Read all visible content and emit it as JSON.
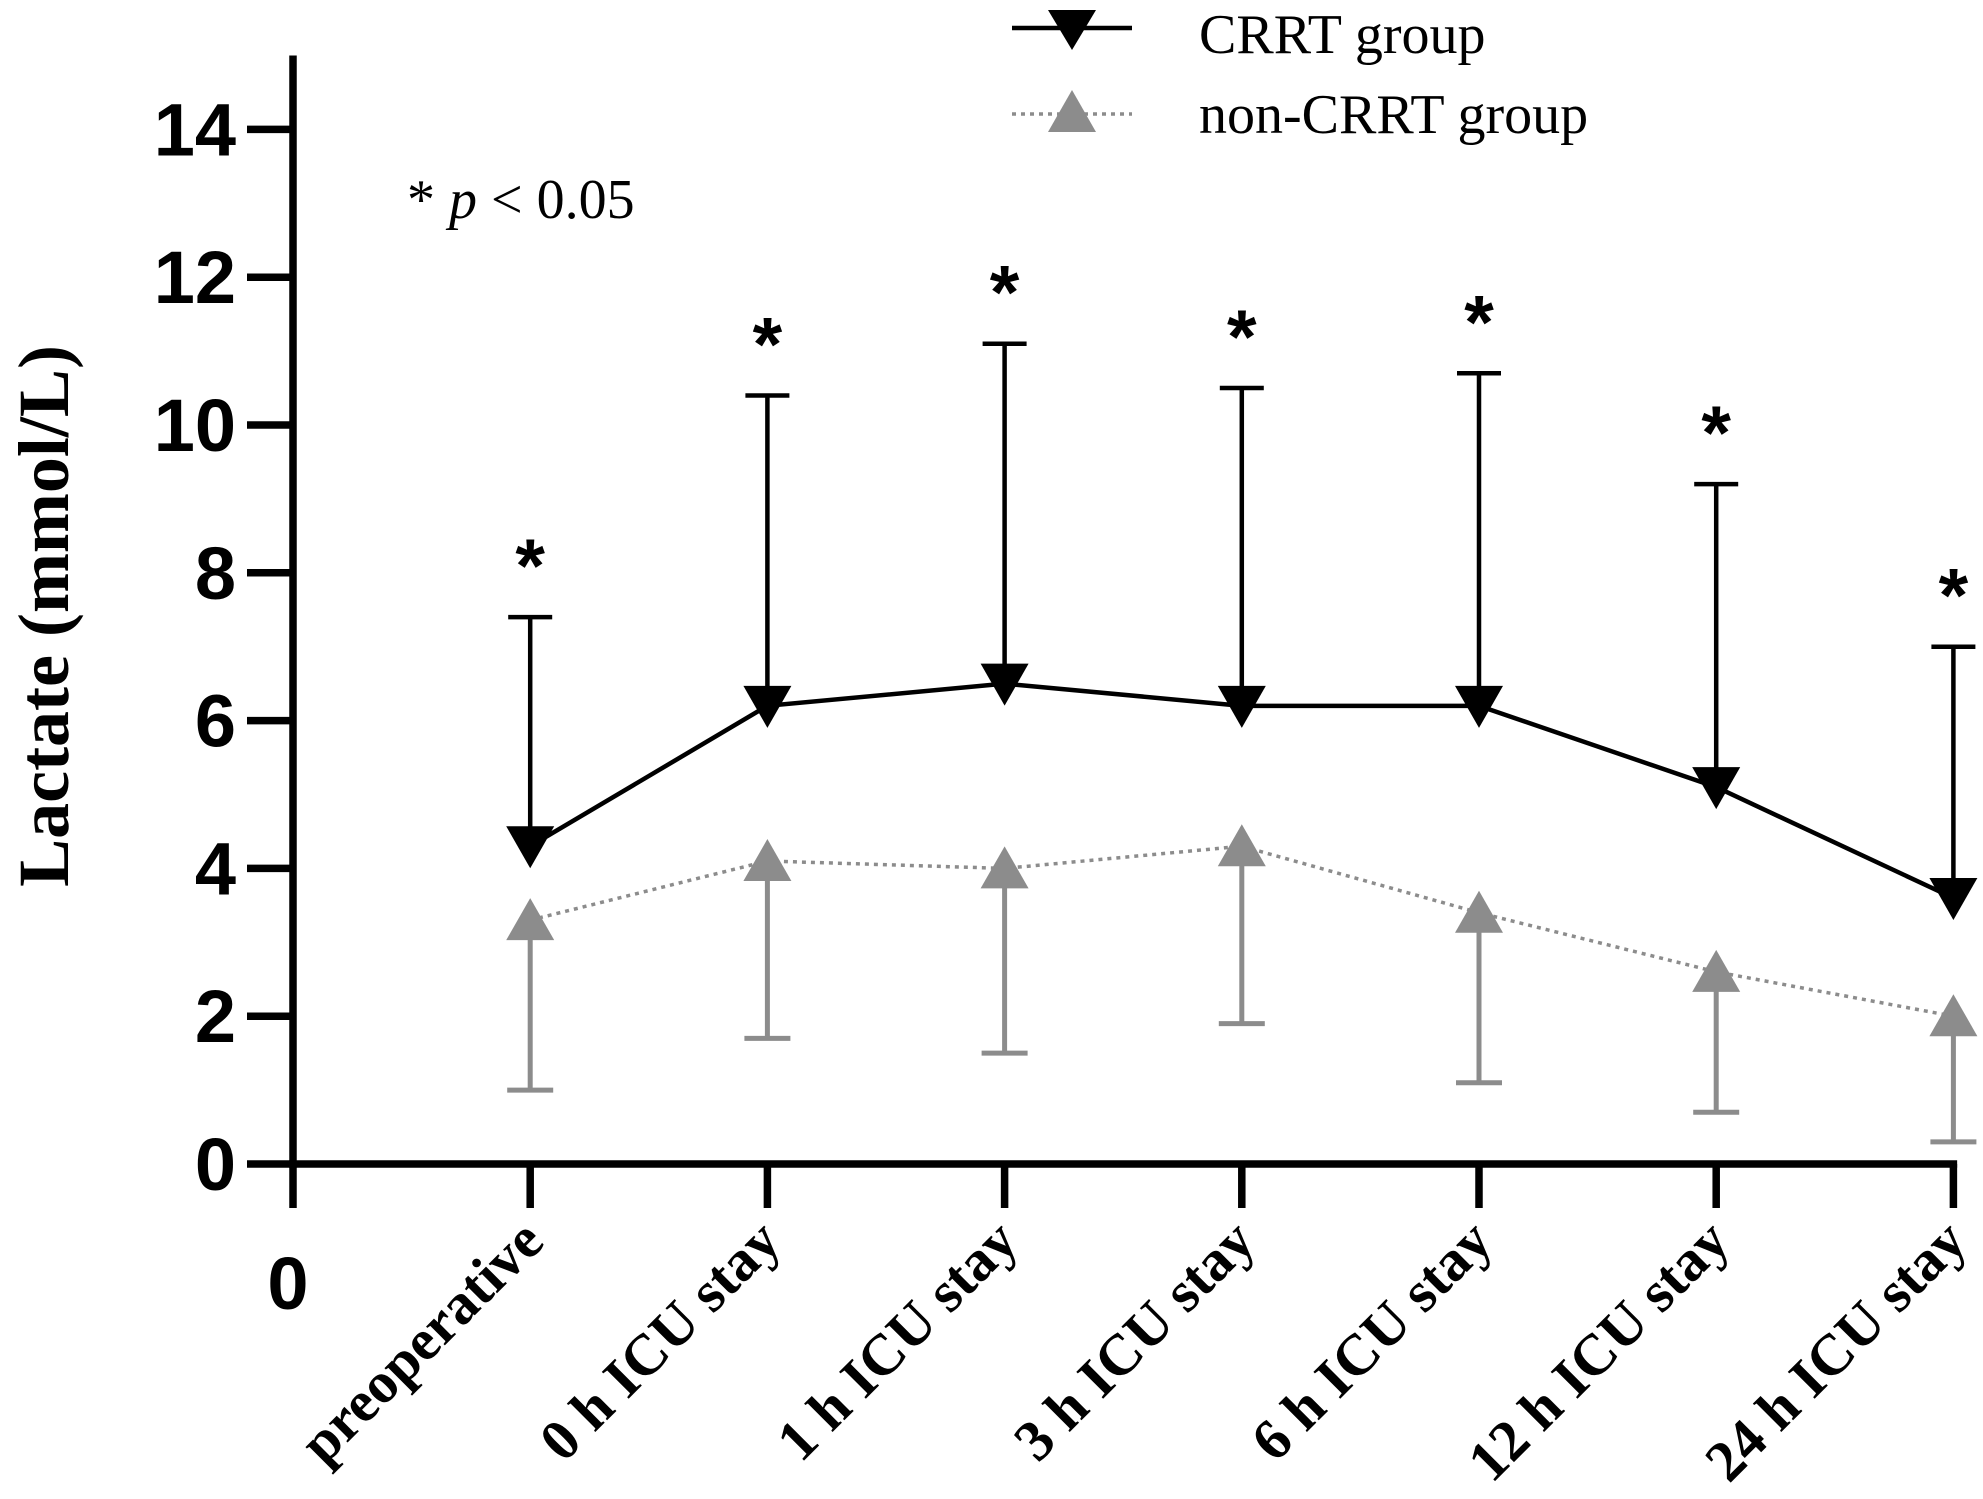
{
  "chart_data": {
    "type": "line",
    "title": "",
    "xlabel": "",
    "ylabel": "Lactate (mmol/L)",
    "ylim": [
      0,
      15
    ],
    "yticks": [
      0,
      2,
      4,
      6,
      8,
      10,
      12,
      14
    ],
    "x_origin_label": "0",
    "categories": [
      "preoperative",
      "0 h ICU stay",
      "1 h ICU stay",
      "3 h ICU stay",
      "6 h ICU stay",
      "12 h ICU stay",
      "24 h ICU stay"
    ],
    "series": [
      {
        "name": "CRRT group",
        "values": [
          4.3,
          6.2,
          6.5,
          6.2,
          6.2,
          5.1,
          3.6
        ],
        "error_upper": [
          7.4,
          10.4,
          11.1,
          10.5,
          10.7,
          9.2,
          7.0
        ],
        "color": "#000000",
        "marker": "triangle-down",
        "line_style": "solid"
      },
      {
        "name": "non-CRRT group",
        "values": [
          3.3,
          4.1,
          4.0,
          4.3,
          3.4,
          2.6,
          2.0
        ],
        "error_lower": [
          1.0,
          1.7,
          1.5,
          1.9,
          1.1,
          0.7,
          0.3
        ],
        "color": "#8c8c8c",
        "marker": "triangle-up",
        "line_style": "dotted"
      }
    ],
    "significance_marks": [
      "*",
      "*",
      "*",
      "*",
      "*",
      "*",
      "*"
    ],
    "annotation": {
      "star": "*",
      "variable": "p",
      "condition": "< 0.05"
    },
    "grid": false,
    "legend_position": "top-right"
  }
}
